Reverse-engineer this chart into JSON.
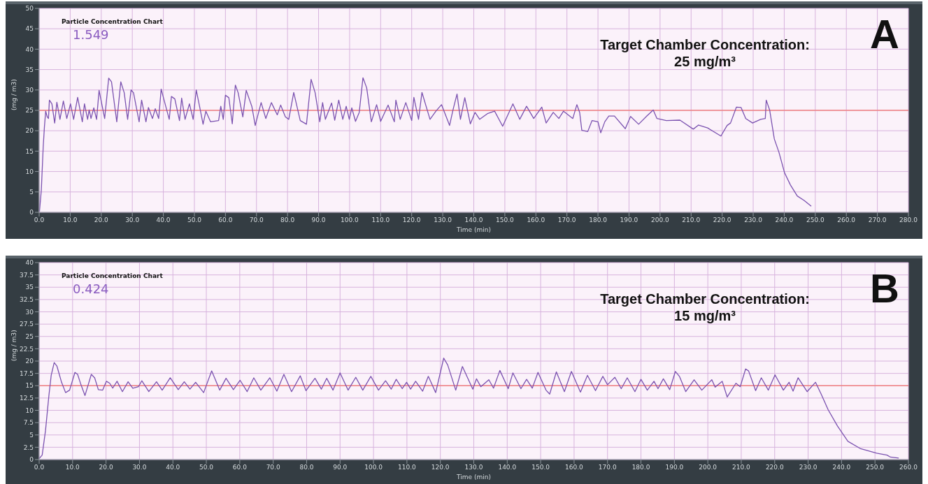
{
  "chart_data": [
    {
      "type": "line",
      "xlabel": "Time (min)",
      "ylabel": "(mg / m3)",
      "grid": true,
      "marker": "none",
      "line_style": "solid",
      "annotations": [
        "Particle Concentration Chart",
        "1.549",
        "Target Chamber Concentration:",
        "25 mg/m³",
        "A"
      ],
      "xlim": [
        0,
        280
      ],
      "ylim": [
        0,
        50
      ],
      "xticks": [
        {
          "value": 0,
          "label": "0.0"
        },
        {
          "value": 10,
          "label": "10.0"
        },
        {
          "value": 20,
          "label": "20.0"
        },
        {
          "value": 30,
          "label": "30.0"
        },
        {
          "value": 40,
          "label": "40.0"
        },
        {
          "value": 50,
          "label": "50.0"
        },
        {
          "value": 60,
          "label": "60.0"
        },
        {
          "value": 70,
          "label": "70.0"
        },
        {
          "value": 80,
          "label": "80.0"
        },
        {
          "value": 90,
          "label": "90.0"
        },
        {
          "value": 100,
          "label": "100.0"
        },
        {
          "value": 110,
          "label": "110.0"
        },
        {
          "value": 120,
          "label": "120.0"
        },
        {
          "value": 130,
          "label": "130.0"
        },
        {
          "value": 140,
          "label": "140.0"
        },
        {
          "value": 150,
          "label": "150.0"
        },
        {
          "value": 160,
          "label": "160.0"
        },
        {
          "value": 170,
          "label": "170.0"
        },
        {
          "value": 180,
          "label": "180.0"
        },
        {
          "value": 190,
          "label": "190.0"
        },
        {
          "value": 200,
          "label": "200.0"
        },
        {
          "value": 210,
          "label": "210.0"
        },
        {
          "value": 220,
          "label": "220.0"
        },
        {
          "value": 230,
          "label": "230.0"
        },
        {
          "value": 240,
          "label": "240.0"
        },
        {
          "value": 250,
          "label": "250.0"
        },
        {
          "value": 260,
          "label": "260.0"
        },
        {
          "value": 270,
          "label": "270.0"
        },
        {
          "value": 280,
          "label": "280.0"
        }
      ],
      "yticks": [
        0,
        5,
        10,
        15,
        20,
        25,
        30,
        35,
        40,
        45,
        50
      ],
      "ref_lines": [
        {
          "axis": "y",
          "value": 25,
          "color": "#f08080"
        }
      ],
      "series": [
        {
          "color": "#7b52b0",
          "x": [
            0.1,
            0.7,
            1.3,
            1.7,
            2.1,
            2.6,
            3,
            3.3,
            4.1,
            5,
            5.7,
            6.7,
            7.8,
            8.9,
            10.1,
            11.1,
            12.4,
            13.9,
            14.6,
            15.6,
            16.1,
            16.7,
            17.6,
            18.5,
            19.3,
            21.1,
            22.4,
            23.3,
            25,
            26.3,
            27.4,
            28.5,
            29.6,
            30.4,
            32.2,
            33,
            34.4,
            35.2,
            36.5,
            37.4,
            38.5,
            39.3,
            41.9,
            42.6,
            43.7,
            45.2,
            45.9,
            47,
            48.4,
            49.6,
            50.6,
            51.9,
            52.8,
            53.7,
            55.2,
            57.8,
            58.5,
            59.3,
            60,
            61.1,
            62.2,
            63.2,
            64.1,
            65.6,
            66.7,
            68.5,
            69.6,
            71.5,
            73,
            74.8,
            76.7,
            77.8,
            79.3,
            80.4,
            82,
            84.1,
            86.1,
            87.6,
            88.9,
            90.4,
            91.3,
            92.2,
            94.2,
            95.2,
            96.5,
            97.8,
            98.9,
            99.9,
            100.7,
            101.9,
            103.1,
            104.3,
            105.5,
            107,
            108.7,
            110,
            112.4,
            114.4,
            114.9,
            116.3,
            118.1,
            120,
            120.7,
            122.2,
            123.3,
            125.9,
            127.8,
            129.6,
            132.2,
            133.3,
            134.6,
            135.7,
            137.1,
            138.9,
            140.4,
            141.9,
            144.4,
            146.7,
            149.3,
            152.6,
            154.8,
            157,
            159.3,
            161.9,
            163.3,
            165.6,
            167.4,
            168.9,
            171.9,
            173.2,
            174.1,
            174.8,
            176.7,
            178.1,
            180,
            180.9,
            182.2,
            183.5,
            185.3,
            188.8,
            190.5,
            193.1,
            195.7,
            197.8,
            199,
            202,
            206.4,
            210.7,
            212.4,
            215.3,
            219.6,
            221.6,
            222.7,
            224.6,
            226.1,
            227.6,
            229.8,
            232.4,
            233.9,
            234.2,
            235.3,
            236.8,
            238.3,
            240.1,
            242,
            244.2,
            246.4,
            248.7
          ],
          "values": [
            0.2,
            5.5,
            16,
            21,
            24.8,
            23.4,
            23,
            27.5,
            26.6,
            21.9,
            27,
            22.8,
            27.3,
            23,
            26.6,
            22.8,
            28.2,
            22.2,
            26.6,
            22.8,
            25.1,
            23,
            25.6,
            22.8,
            29.9,
            23,
            32.9,
            32,
            22.2,
            32,
            29.3,
            22.8,
            30,
            29.3,
            22.2,
            27.5,
            22.2,
            25.7,
            23,
            25.4,
            23,
            30.2,
            22.8,
            28.4,
            27.8,
            22.5,
            28,
            22.8,
            26.6,
            22.8,
            30,
            25.1,
            21.6,
            24.8,
            22.2,
            22.5,
            26,
            22.8,
            28.7,
            28.1,
            21.7,
            31.2,
            29.3,
            23.4,
            29.9,
            26,
            21.3,
            26.9,
            23,
            26.9,
            23.9,
            26.3,
            23.4,
            22.8,
            29.4,
            22.5,
            21.6,
            32.6,
            29.3,
            22.2,
            26.9,
            22.8,
            26.8,
            22.6,
            27.5,
            22.8,
            26,
            22.8,
            25.6,
            22.3,
            24.5,
            33,
            30.5,
            22.2,
            26.4,
            22.3,
            26.3,
            22.2,
            27.5,
            22.8,
            26.9,
            22.5,
            28.2,
            22.8,
            29.4,
            22.8,
            24.8,
            26.4,
            21.3,
            25.1,
            29,
            22.8,
            28.1,
            21.7,
            24.5,
            22.8,
            24.2,
            24.8,
            21.1,
            26.6,
            22.8,
            26,
            23,
            25.8,
            21.9,
            24.5,
            23,
            24.8,
            23,
            26.4,
            24.5,
            20.1,
            19.8,
            22.5,
            22.2,
            19.5,
            22.2,
            23.6,
            23.6,
            20.5,
            23.5,
            21.6,
            23.6,
            25.1,
            23,
            22.5,
            22.6,
            20.4,
            21.4,
            20.7,
            18.7,
            21.3,
            21.9,
            25.8,
            25.7,
            23,
            21.9,
            22.8,
            23,
            27.5,
            25.1,
            18,
            14.7,
            9.7,
            6.7,
            4,
            2.9,
            1.5
          ]
        }
      ]
    },
    {
      "type": "line",
      "xlabel": "Time (min)",
      "ylabel": "(mg / m3)",
      "grid": true,
      "marker": "none",
      "line_style": "solid",
      "annotations": [
        "Particle Concentration Chart",
        "0.424",
        "Target Chamber Concentration:",
        "15 mg/m³",
        "B"
      ],
      "xlim": [
        0,
        260
      ],
      "ylim": [
        0,
        40
      ],
      "xticks": [
        {
          "value": 0,
          "label": "0.0"
        },
        {
          "value": 10,
          "label": "10.0"
        },
        {
          "value": 20,
          "label": "20.0"
        },
        {
          "value": 30,
          "label": "30.0"
        },
        {
          "value": 40,
          "label": "40.0"
        },
        {
          "value": 50,
          "label": "50.0"
        },
        {
          "value": 60,
          "label": "60.0"
        },
        {
          "value": 70,
          "label": "70.0"
        },
        {
          "value": 80,
          "label": "80.0"
        },
        {
          "value": 90,
          "label": "90.0"
        },
        {
          "value": 100,
          "label": "100.0"
        },
        {
          "value": 110,
          "label": "110.0"
        },
        {
          "value": 120,
          "label": "120.0"
        },
        {
          "value": 130,
          "label": "130.0"
        },
        {
          "value": 140,
          "label": "140.0"
        },
        {
          "value": 150,
          "label": "150.0"
        },
        {
          "value": 160,
          "label": "160.0"
        },
        {
          "value": 170,
          "label": "170.0"
        },
        {
          "value": 180,
          "label": "180.0"
        },
        {
          "value": 190,
          "label": "190.0"
        },
        {
          "value": 200,
          "label": "200.0"
        },
        {
          "value": 210,
          "label": "210.0"
        },
        {
          "value": 220,
          "label": "220.0"
        },
        {
          "value": 230,
          "label": "230.0"
        },
        {
          "value": 240,
          "label": "240.0"
        },
        {
          "value": 250,
          "label": "250.0"
        },
        {
          "value": 260,
          "label": "260.0"
        }
      ],
      "yticks": [
        0,
        2.5,
        5,
        7.5,
        10,
        12.5,
        15,
        17.5,
        20,
        22.5,
        25,
        27.5,
        30,
        32.5,
        35,
        37.5,
        40
      ],
      "ref_lines": [
        {
          "axis": "y",
          "value": 15,
          "color": "#f08080"
        }
      ],
      "series": [
        {
          "color": "#7b52b0",
          "x": [
            0,
            0.9,
            1.9,
            2.9,
            3.6,
            4.5,
            5.3,
            6.7,
            7.9,
            9.1,
            10.7,
            11.5,
            12.5,
            13.7,
            15.6,
            16.6,
            17.7,
            19,
            20.1,
            21.1,
            22,
            23.3,
            24.9,
            26.6,
            28,
            29.7,
            30.7,
            32.8,
            35.1,
            36.8,
            39.2,
            41.6,
            43.4,
            45.1,
            46.8,
            49.2,
            51.6,
            54,
            55.9,
            58.1,
            60.1,
            62.2,
            64.2,
            66.3,
            69,
            71.1,
            73.2,
            75.5,
            78.1,
            79.8,
            82.5,
            84.4,
            86,
            87.9,
            90,
            92.4,
            94.7,
            96.8,
            99.2,
            101.5,
            103.6,
            105.3,
            106.8,
            108.6,
            109.9,
            111.1,
            112.6,
            114.7,
            116.4,
            118.6,
            121,
            122.2,
            124.6,
            126.6,
            129.7,
            130.8,
            132.1,
            134.5,
            135.9,
            137.8,
            140.3,
            141.7,
            144.1,
            145.8,
            147.5,
            149.2,
            151.6,
            152.7,
            154.7,
            157.1,
            159.2,
            161.9,
            164,
            166.4,
            168.6,
            170,
            172.2,
            174.1,
            175.9,
            178.2,
            180,
            181.9,
            183.9,
            185.1,
            186.7,
            188.6,
            190.3,
            191.5,
            193.4,
            195.9,
            198.2,
            201.2,
            202.2,
            204.3,
            205.8,
            208.4,
            209.7,
            211.3,
            212.2,
            214.3,
            216,
            218.1,
            220.1,
            222.6,
            224.3,
            225.5,
            227,
            229.7,
            232.2,
            233.9,
            236,
            238.8,
            241.9,
            245.7,
            250.5,
            253.6,
            254.6,
            257.1
          ],
          "values": [
            0.2,
            0.9,
            5.9,
            12.9,
            17.1,
            19.7,
            19,
            15.7,
            13.6,
            14.1,
            17.7,
            17.3,
            15.2,
            13,
            17.3,
            16.6,
            14.2,
            14.1,
            15.9,
            15.5,
            14.5,
            15.9,
            13.8,
            15.8,
            14.5,
            14.8,
            16,
            13.8,
            15.8,
            14.1,
            16.6,
            14.2,
            15.8,
            14.3,
            15.7,
            13.6,
            18,
            14.1,
            16.5,
            14.2,
            16.1,
            13.8,
            16.6,
            14.1,
            16.6,
            13.9,
            17.3,
            13.8,
            17,
            14,
            16.5,
            14.3,
            16.5,
            14.1,
            17.6,
            14.1,
            16.7,
            14.1,
            16.9,
            14.1,
            16,
            14.3,
            16.3,
            14.4,
            15.7,
            14.3,
            15.9,
            13.9,
            16.9,
            13.6,
            20.6,
            19.2,
            14.1,
            18.9,
            14.3,
            16.4,
            14.8,
            16.2,
            14.5,
            18.1,
            14.4,
            17.6,
            14.4,
            16.3,
            14.5,
            17.7,
            14.1,
            13.3,
            17.8,
            13.8,
            17.9,
            13.7,
            17.1,
            14,
            16.9,
            15.2,
            16.7,
            14.4,
            16.6,
            13.8,
            16.3,
            14.1,
            15.9,
            14.4,
            16.4,
            14.2,
            17.9,
            16.9,
            13.8,
            16.2,
            14.1,
            16.2,
            14.7,
            15.9,
            12.7,
            15.5,
            14.8,
            18.4,
            18,
            14,
            16.6,
            14.1,
            17.2,
            14.1,
            15.7,
            13.9,
            16.6,
            13.8,
            15.7,
            13.3,
            10.1,
            6.8,
            3.7,
            2.2,
            1.3,
            0.9,
            0.5,
            0.3
          ]
        }
      ]
    }
  ]
}
